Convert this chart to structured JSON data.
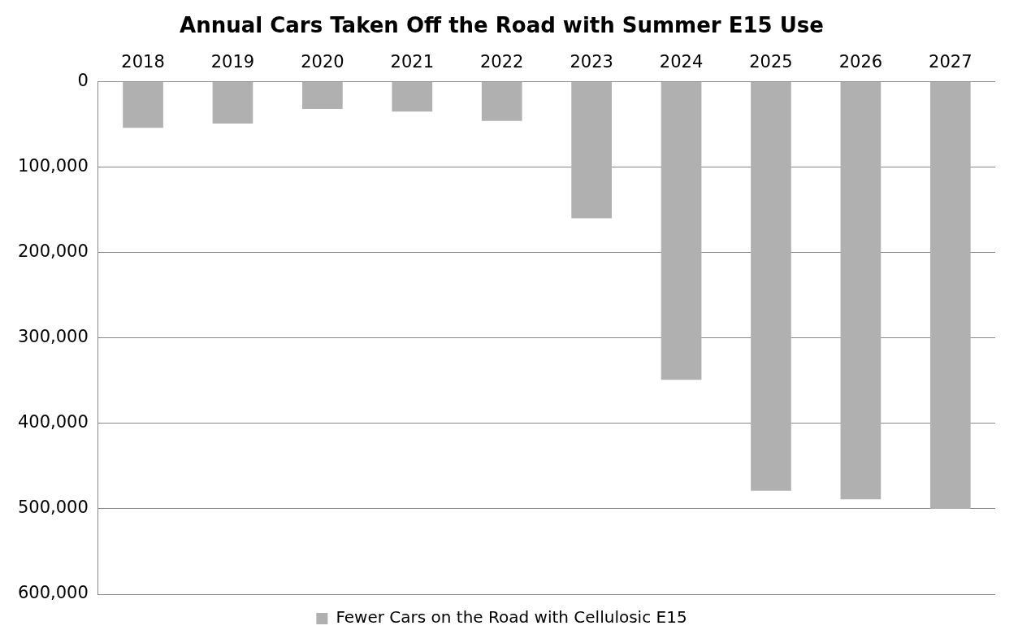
{
  "chart_data": {
    "type": "bar",
    "title": "Annual Cars Taken Off the Road with Summer E15 Use",
    "categories": [
      "2018",
      "2019",
      "2020",
      "2021",
      "2022",
      "2023",
      "2024",
      "2025",
      "2026",
      "2027"
    ],
    "series": [
      {
        "name": "Fewer Cars on the Road with Cellulosic E15",
        "color": "#b0b0b0",
        "values": [
          54000,
          49000,
          32000,
          35000,
          46000,
          160000,
          349000,
          479000,
          489000,
          500000
        ]
      }
    ],
    "ylim": [
      600000,
      0
    ],
    "yticks": [
      {
        "value": 0,
        "label": "0"
      },
      {
        "value": 100000,
        "label": "100,000"
      },
      {
        "value": 200000,
        "label": "200,000"
      },
      {
        "value": 300000,
        "label": "300,000"
      },
      {
        "value": 400000,
        "label": "400,000"
      },
      {
        "value": 500000,
        "label": "500,000"
      },
      {
        "value": 600000,
        "label": "600,000"
      }
    ],
    "grid": "y",
    "legend": "bottom"
  }
}
